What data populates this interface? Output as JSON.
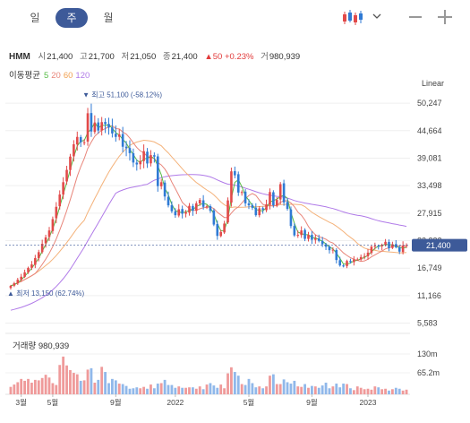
{
  "tabs": {
    "day": "일",
    "week": "주",
    "month": "월"
  },
  "quote": {
    "symbol": "HMM",
    "open_label": "시",
    "open": "21,400",
    "high_label": "고",
    "high": "21,700",
    "low_label": "저",
    "low": "21,050",
    "close_label": "종",
    "close": "21,400",
    "change": "▲50",
    "change_pct": "+0.23%",
    "vol_label": "거",
    "volume": "980,939"
  },
  "ma": {
    "label": "이동평균",
    "p5": "5",
    "p20": "20",
    "p60": "60",
    "p120": "120"
  },
  "scale": "Linear",
  "volume_label": "거래량 980,939",
  "colors": {
    "up": "#e24a4a",
    "down": "#2f7ad4",
    "ma5": "#55bb44",
    "ma20": "#e8857a",
    "ma60": "#f4b27a",
    "ma120": "#b07ae8",
    "last_price_bg": "#3d5a99",
    "vol_up": "#ef9a9a",
    "vol_down": "#90b8ea"
  },
  "chart_data": {
    "type": "candlestick",
    "x_ticks": [
      "3월",
      "5월",
      "9월",
      "2022",
      "5월",
      "9월",
      "2023"
    ],
    "y_ticks": [
      50247,
      44664,
      39081,
      33498,
      27915,
      22332,
      16749,
      11166,
      5583
    ],
    "y_tick_labels": [
      "50,247",
      "44,664",
      "39,081",
      "33,498",
      "27,915",
      "22,332",
      "16,749",
      "11,166",
      "5,583"
    ],
    "ylim": [
      3500,
      53000
    ],
    "last_price": 21400,
    "last_price_label": "21,400",
    "high_annotation": "최고 51,100 (-58.12%)",
    "low_annotation": "최저 13,150 (62.74%)",
    "close": [
      13150,
      13700,
      14400,
      15000,
      15900,
      16800,
      17500,
      18800,
      20000,
      21700,
      23000,
      24400,
      26700,
      29200,
      31700,
      34200,
      36700,
      39400,
      41900,
      43400,
      42300,
      42300,
      48200,
      44500,
      46300,
      44700,
      46400,
      46000,
      45300,
      44100,
      43400,
      43900,
      41400,
      41100,
      40100,
      38200,
      37800,
      38500,
      40500,
      38000,
      39700,
      39400,
      33400,
      34200,
      31300,
      29500,
      28300,
      27500,
      28700,
      27800,
      28100,
      29400,
      28400,
      29900,
      30600,
      29200,
      29300,
      28400,
      25600,
      23300,
      24100,
      25800,
      30500,
      36400,
      35600,
      32100,
      32200,
      29900,
      29500,
      29000,
      27500,
      28900,
      28600,
      29700,
      32200,
      29500,
      30600,
      33800,
      30100,
      28800,
      25300,
      23400,
      23500,
      24400,
      22700,
      23500,
      22500,
      22800,
      22300,
      21600,
      21100,
      20400,
      20500,
      18400,
      17300,
      17100,
      18200,
      18000,
      18500,
      18500,
      19000,
      19200,
      19900,
      21100,
      21300,
      21200,
      21500,
      22100,
      20800,
      21600,
      21000,
      20100,
      21350,
      21400
    ],
    "volume_scale_ticks": [
      "130m",
      "65.2m"
    ],
    "volume_rel": [
      0.16,
      0.21,
      0.26,
      0.33,
      0.29,
      0.33,
      0.25,
      0.31,
      0.3,
      0.35,
      0.42,
      0.36,
      0.24,
      0.2,
      0.63,
      0.81,
      0.62,
      0.52,
      0.46,
      0.43,
      0.29,
      0.3,
      0.53,
      0.56,
      0.25,
      0.31,
      0.59,
      0.48,
      0.24,
      0.33,
      0.3,
      0.23,
      0.22,
      0.18,
      0.12,
      0.13,
      0.15,
      0.13,
      0.16,
      0.12,
      0.21,
      0.13,
      0.23,
      0.24,
      0.31,
      0.2,
      0.2,
      0.14,
      0.17,
      0.14,
      0.14,
      0.15,
      0.15,
      0.12,
      0.17,
      0.11,
      0.21,
      0.24,
      0.19,
      0.14,
      0.21,
      0.13,
      0.45,
      0.58,
      0.48,
      0.4,
      0.22,
      0.2,
      0.33,
      0.24,
      0.15,
      0.17,
      0.13,
      0.17,
      0.4,
      0.43,
      0.22,
      0.22,
      0.32,
      0.26,
      0.23,
      0.29,
      0.17,
      0.16,
      0.22,
      0.14,
      0.18,
      0.17,
      0.14,
      0.19,
      0.25,
      0.13,
      0.17,
      0.23,
      0.15,
      0.23,
      0.22,
      0.13,
      0.09,
      0.17,
      0.14,
      0.11,
      0.12,
      0.1,
      0.17,
      0.15,
      0.11,
      0.12,
      0.08,
      0.11,
      0.14,
      0.12,
      0.08,
      0.1
    ]
  }
}
